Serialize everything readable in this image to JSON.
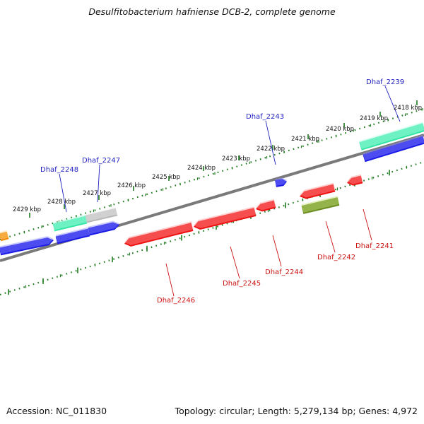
{
  "title": "Desulfitobacterium hafniense DCB-2, complete genome",
  "footer": {
    "accession": "Accession: NC_011830",
    "summary": "Topology: circular; Length: 5,279,134 bp; Genes: 4,972"
  },
  "colors": {
    "backbone": "#7a7a7a",
    "ruler": "#1e7a1e",
    "forward_label": "#1f1fbf",
    "reverse_label": "#cc1111",
    "gene_blue": "#1a1ae6",
    "gene_red": "#ee1111",
    "gene_teal": "#33e6a6",
    "gene_gray": "#b8b8b8",
    "gene_olive": "#6b8e23",
    "gene_orange": "#f08c00"
  },
  "kbp_labels": [
    {
      "kbp": 2418,
      "text": "2418 kbp"
    },
    {
      "kbp": 2419,
      "text": "2419 kbp"
    },
    {
      "kbp": 2420,
      "text": "2420 kbp"
    },
    {
      "kbp": 2421,
      "text": "2421 kbp"
    },
    {
      "kbp": 2422,
      "text": "2422 kbp"
    },
    {
      "kbp": 2423,
      "text": "2423 kbp"
    },
    {
      "kbp": 2424,
      "text": "2424 kbp"
    },
    {
      "kbp": 2425,
      "text": "2425 kbp"
    },
    {
      "kbp": 2426,
      "text": "2426 kbp"
    },
    {
      "kbp": 2427,
      "text": "2427 kbp"
    },
    {
      "kbp": 2428,
      "text": "2428 kbp"
    },
    {
      "kbp": 2429,
      "text": "2429 kbp"
    }
  ],
  "gene_labels": [
    {
      "id": "Dhaf_2239",
      "strand": "forward"
    },
    {
      "id": "Dhaf_2243",
      "strand": "forward"
    },
    {
      "id": "Dhaf_2247",
      "strand": "forward"
    },
    {
      "id": "Dhaf_2248",
      "strand": "forward"
    },
    {
      "id": "Dhaf_2241",
      "strand": "reverse"
    },
    {
      "id": "Dhaf_2242",
      "strand": "reverse"
    },
    {
      "id": "Dhaf_2244",
      "strand": "reverse"
    },
    {
      "id": "Dhaf_2245",
      "strand": "reverse"
    },
    {
      "id": "Dhaf_2246",
      "strand": "reverse"
    }
  ]
}
